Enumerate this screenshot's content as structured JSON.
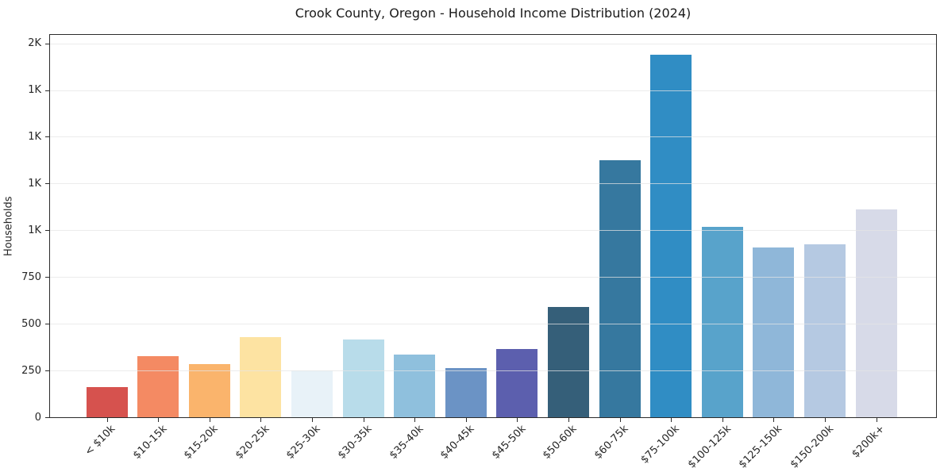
{
  "chart_data": {
    "type": "bar",
    "title": "Crook County, Oregon - Household Income Distribution (2024)",
    "xlabel": "",
    "ylabel": "Households",
    "categories": [
      "< $10k",
      "$10-15k",
      "$15-20k",
      "$20-25k",
      "$25-30k",
      "$30-35k",
      "$35-40k",
      "$40-45k",
      "$45-50k",
      "$50-60k",
      "$60-75k",
      "$75-100k",
      "$100-125k",
      "$125-150k",
      "$150-200k",
      "$200k+"
    ],
    "values": [
      160,
      325,
      285,
      430,
      250,
      415,
      335,
      265,
      365,
      590,
      1375,
      1940,
      1020,
      910,
      925,
      1110
    ],
    "bar_colors": [
      "#d6524e",
      "#f48a63",
      "#fab46c",
      "#fde3a2",
      "#e8f2f8",
      "#b8dcea",
      "#8fc0dd",
      "#6b93c5",
      "#5c5fae",
      "#355f79",
      "#36789f",
      "#308dc4",
      "#58a3cb",
      "#8fb7d9",
      "#b5c9e2",
      "#d7dae8"
    ],
    "ylim": [
      0,
      2045
    ],
    "y_ticks": [
      {
        "value": 0,
        "label": "0"
      },
      {
        "value": 250,
        "label": "250"
      },
      {
        "value": 500,
        "label": "500"
      },
      {
        "value": 750,
        "label": "750"
      },
      {
        "value": 1000,
        "label": "1K"
      },
      {
        "value": 1250,
        "label": "1K"
      },
      {
        "value": 1500,
        "label": "1K"
      },
      {
        "value": 1750,
        "label": "1K"
      },
      {
        "value": 2000,
        "label": "2K"
      }
    ],
    "grid": "horizontal",
    "legend": "none",
    "x_tick_rotation": 45,
    "background_color": "#ffffff",
    "spine_color": "#2b2b2b",
    "gridline_color": "#e5e5e5",
    "text_color": "#262626"
  }
}
